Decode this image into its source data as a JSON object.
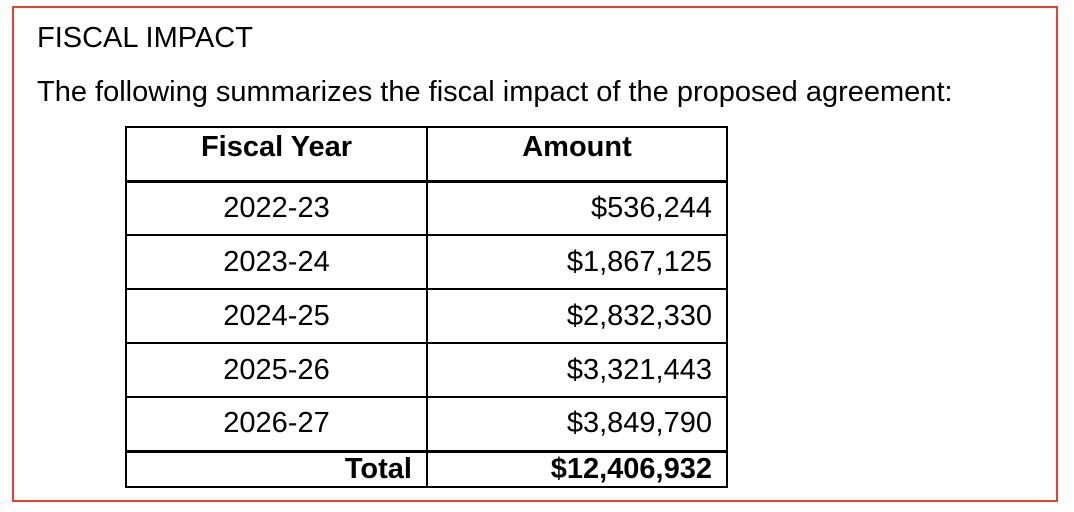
{
  "section": {
    "heading": "FISCAL IMPACT",
    "intro": "The following summarizes the fiscal impact of the proposed agreement:"
  },
  "table": {
    "headers": {
      "fiscal_year": "Fiscal Year",
      "amount": "Amount"
    },
    "rows": [
      {
        "fiscal_year": "2022-23",
        "amount": "$536,244"
      },
      {
        "fiscal_year": "2023-24",
        "amount": "$1,867,125"
      },
      {
        "fiscal_year": "2024-25",
        "amount": "$2,832,330"
      },
      {
        "fiscal_year": "2025-26",
        "amount": "$3,321,443"
      },
      {
        "fiscal_year": "2026-27",
        "amount": "$3,849,790"
      }
    ],
    "total": {
      "label": "Total",
      "amount": "$12,406,932"
    }
  },
  "colors": {
    "frame_border": "#e8412c",
    "table_border": "#000000",
    "text": "#000000"
  }
}
